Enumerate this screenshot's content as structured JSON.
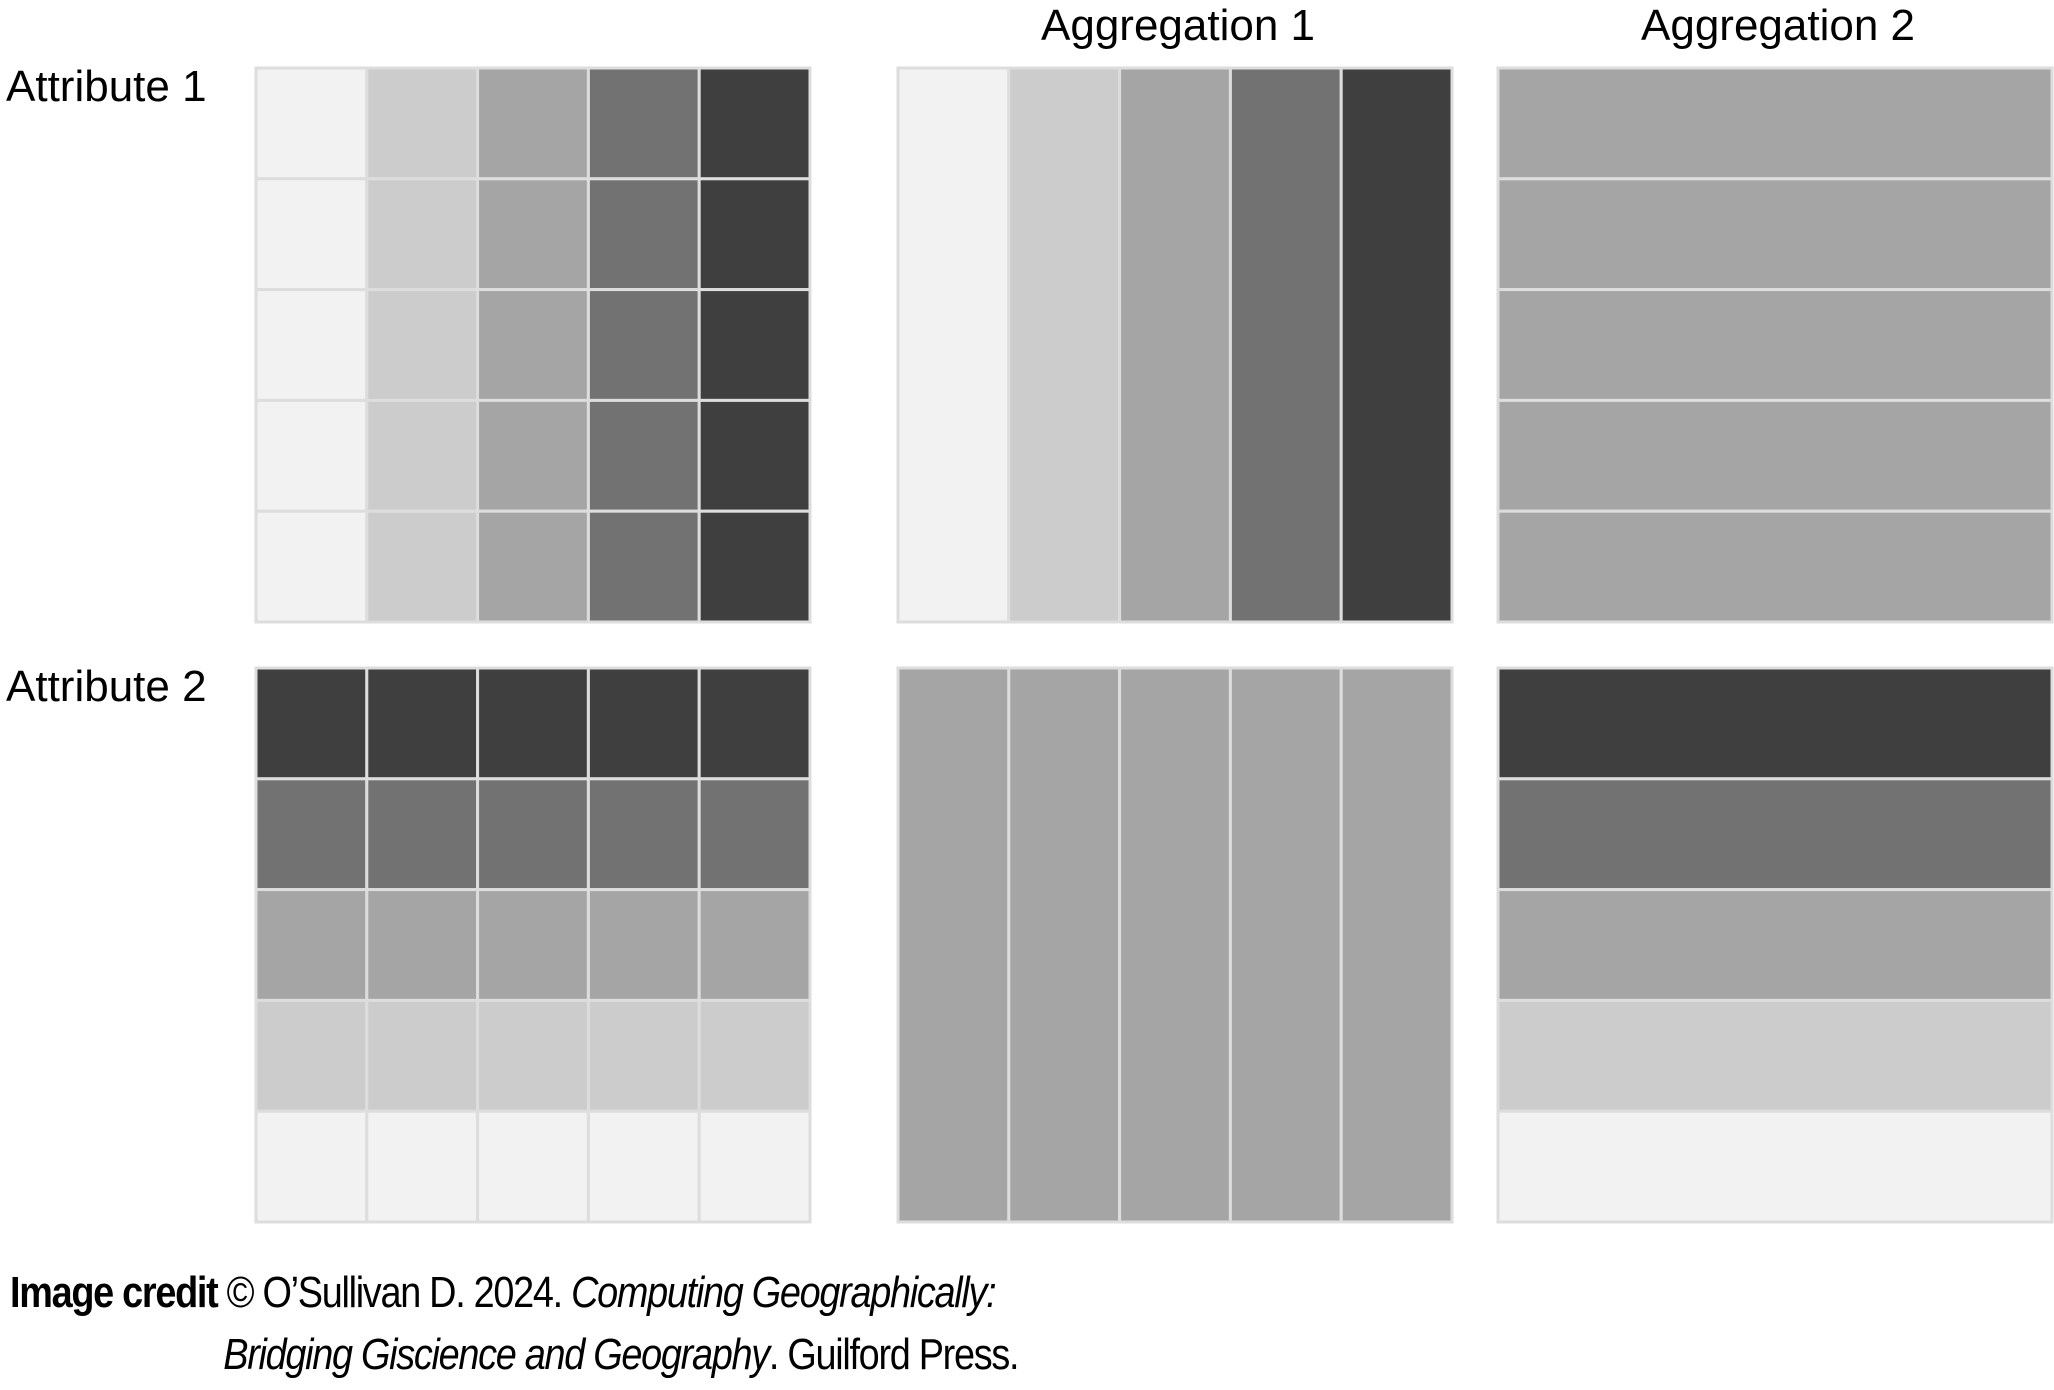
{
  "labels": {
    "columns": [
      "",
      "Aggregation 1",
      "Aggregation 2"
    ],
    "rows": [
      "Attribute 1",
      "Attribute 2"
    ]
  },
  "colors": {
    "gray_1": "#f2f2f2",
    "gray_2": "#cccccc",
    "gray_3": "#a5a5a5",
    "gray_4": "#727272",
    "gray_5": "#3f3f3f",
    "cell_border": "#dddddd",
    "background": "#ffffff"
  },
  "grids": {
    "attribute_1": {
      "original": [
        [
          1,
          2,
          3,
          4,
          5
        ],
        [
          1,
          2,
          3,
          4,
          5
        ],
        [
          1,
          2,
          3,
          4,
          5
        ],
        [
          1,
          2,
          3,
          4,
          5
        ],
        [
          1,
          2,
          3,
          4,
          5
        ]
      ],
      "aggregation_1": {
        "orientation": "columns",
        "values": [
          1,
          2,
          3,
          4,
          5
        ]
      },
      "aggregation_2": {
        "orientation": "rows",
        "values": [
          3,
          3,
          3,
          3,
          3
        ]
      }
    },
    "attribute_2": {
      "original": [
        [
          5,
          5,
          5,
          5,
          5
        ],
        [
          4,
          4,
          4,
          4,
          4
        ],
        [
          3,
          3,
          3,
          3,
          3
        ],
        [
          2,
          2,
          2,
          2,
          2
        ],
        [
          1,
          1,
          1,
          1,
          1
        ]
      ],
      "aggregation_1": {
        "orientation": "columns",
        "values": [
          3,
          3,
          3,
          3,
          3
        ]
      },
      "aggregation_2": {
        "orientation": "rows",
        "values": [
          5,
          4,
          3,
          2,
          1
        ]
      }
    }
  },
  "credit": {
    "label": "Image credit",
    "prefix": "© O’Sullivan D. 2024. ",
    "title_part1": "Computing Geographically:",
    "title_part2": "Bridging Giscience and Geography",
    "suffix": ". Guilford Press."
  }
}
